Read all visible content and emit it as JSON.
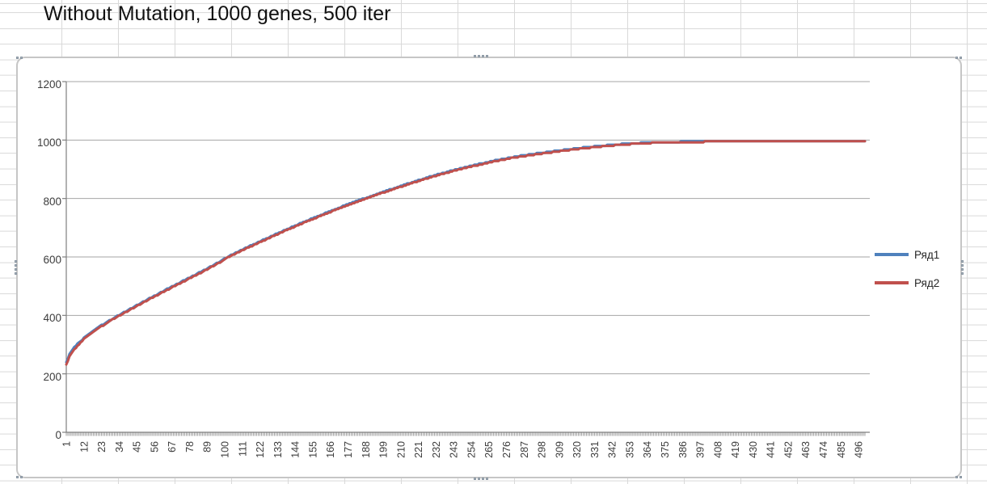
{
  "sheet": {
    "title": "Without Mutation, 1000 genes, 500 iter"
  },
  "chart_data": {
    "type": "line",
    "title": "Without Mutation, 1000 genes, 500 iter",
    "n_categories": 500,
    "x_range": [
      1,
      500
    ],
    "x_tick_label_step": 11,
    "x_tick_labels": [
      1,
      12,
      23,
      34,
      45,
      56,
      67,
      78,
      89,
      100,
      111,
      122,
      133,
      144,
      155,
      166,
      177,
      188,
      199,
      210,
      221,
      232,
      243,
      254,
      265,
      276,
      287,
      298,
      309,
      320,
      331,
      342,
      353,
      364,
      375,
      386,
      397,
      408,
      419,
      430,
      441,
      452,
      463,
      474,
      485,
      496
    ],
    "ylim": [
      0,
      1200
    ],
    "y_ticks": [
      0,
      200,
      400,
      600,
      800,
      1000,
      1200
    ],
    "grid": "horizontal",
    "legend_position": "right",
    "axis_color": "#7f7f7f",
    "gridline_color": "#a6a6a6",
    "series": [
      {
        "name": "Ряд1",
        "color": "#4F81BD",
        "anchors": [
          [
            1,
            242
          ],
          [
            3,
            269
          ],
          [
            5,
            286
          ],
          [
            8,
            304
          ],
          [
            12,
            325
          ],
          [
            17,
            346
          ],
          [
            23,
            368
          ],
          [
            30,
            391
          ],
          [
            44,
            433
          ],
          [
            54,
            463
          ],
          [
            64,
            492
          ],
          [
            74,
            520
          ],
          [
            84,
            548
          ],
          [
            94,
            577
          ],
          [
            102,
            603
          ],
          [
            114,
            635
          ],
          [
            126,
            665
          ],
          [
            138,
            695
          ],
          [
            150,
            723
          ],
          [
            162,
            750
          ],
          [
            174,
            776
          ],
          [
            186,
            800
          ],
          [
            198,
            823
          ],
          [
            210,
            845
          ],
          [
            222,
            866
          ],
          [
            231,
            881
          ],
          [
            243,
            899
          ],
          [
            255,
            915
          ],
          [
            267,
            930
          ],
          [
            279,
            943
          ],
          [
            291,
            953
          ],
          [
            307,
            965
          ],
          [
            320,
            974
          ],
          [
            334,
            982
          ],
          [
            348,
            988
          ],
          [
            362,
            993
          ],
          [
            375,
            995
          ],
          [
            385,
            996
          ],
          [
            400,
            996
          ],
          [
            450,
            997
          ],
          [
            500,
            997
          ]
        ]
      },
      {
        "name": "Ряд2",
        "color": "#C0504D",
        "anchors": [
          [
            1,
            232
          ],
          [
            3,
            260
          ],
          [
            5,
            278
          ],
          [
            8,
            298
          ],
          [
            12,
            320
          ],
          [
            17,
            342
          ],
          [
            23,
            364
          ],
          [
            30,
            388
          ],
          [
            44,
            430
          ],
          [
            54,
            460
          ],
          [
            64,
            489
          ],
          [
            74,
            517
          ],
          [
            84,
            545
          ],
          [
            94,
            574
          ],
          [
            102,
            600
          ],
          [
            114,
            632
          ],
          [
            126,
            662
          ],
          [
            138,
            692
          ],
          [
            150,
            720
          ],
          [
            162,
            747
          ],
          [
            174,
            773
          ],
          [
            186,
            797
          ],
          [
            198,
            820
          ],
          [
            210,
            842
          ],
          [
            222,
            863
          ],
          [
            231,
            878
          ],
          [
            243,
            896
          ],
          [
            255,
            912
          ],
          [
            267,
            927
          ],
          [
            279,
            940
          ],
          [
            291,
            950
          ],
          [
            307,
            962
          ],
          [
            320,
            971
          ],
          [
            334,
            979
          ],
          [
            348,
            986
          ],
          [
            362,
            991
          ],
          [
            375,
            994
          ],
          [
            385,
            995
          ],
          [
            400,
            996
          ],
          [
            450,
            997
          ],
          [
            500,
            997
          ]
        ]
      }
    ]
  }
}
